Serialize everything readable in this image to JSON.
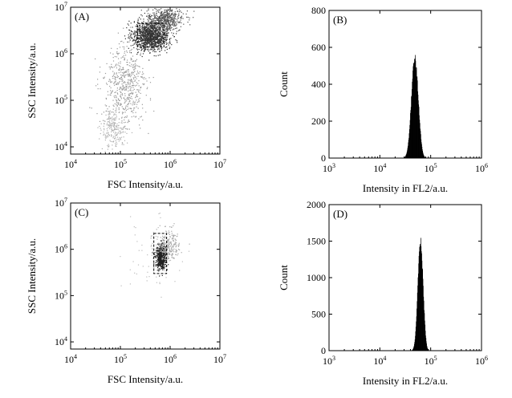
{
  "chart_data": [
    {
      "type": "scatter",
      "panel_label": "(A)",
      "xlabel": "FSC Intensity/a.u.",
      "ylabel": "SSC Intensity/a.u.",
      "x_scale": "log",
      "y_scale": "log",
      "xlim": [
        10000,
        10000000
      ],
      "ylim": [
        7000,
        10000000
      ],
      "x_ticks": [
        {
          "label_base": "10",
          "label_exp": "4",
          "value": 10000
        },
        {
          "label_base": "10",
          "label_exp": "5",
          "value": 100000
        },
        {
          "label_base": "10",
          "label_exp": "6",
          "value": 1000000
        },
        {
          "label_base": "10",
          "label_exp": "7",
          "value": 10000000
        }
      ],
      "y_ticks": [
        {
          "label_base": "10",
          "label_exp": "4",
          "value": 10000
        },
        {
          "label_base": "10",
          "label_exp": "5",
          "value": 100000
        },
        {
          "label_base": "10",
          "label_exp": "6",
          "value": 1000000
        },
        {
          "label_base": "10",
          "label_exp": "7",
          "value": 10000000
        }
      ],
      "gate": {
        "x": [
          220000,
          750000
        ],
        "y": [
          1400000,
          4500000
        ]
      },
      "clusters": [
        {
          "name": "main",
          "center": [
            400000,
            2500000
          ],
          "spread": [
            0.18,
            0.16
          ],
          "count": 1200,
          "color": "#333333"
        },
        {
          "name": "upper",
          "center": [
            800000,
            5500000
          ],
          "spread": [
            0.18,
            0.13
          ],
          "count": 500,
          "color": "#555555"
        },
        {
          "name": "tail",
          "center": [
            120000,
            200000
          ],
          "spread": [
            0.22,
            0.45
          ],
          "count": 550,
          "color": "#9a9a9a"
        },
        {
          "name": "low",
          "center": [
            70000,
            25000
          ],
          "spread": [
            0.12,
            0.2
          ],
          "count": 220,
          "color": "#b0b0b0"
        }
      ]
    },
    {
      "type": "bar",
      "panel_label": "(B)",
      "xlabel": "Intensity in FL2/a.u.",
      "ylabel": "Count",
      "x_scale": "log",
      "xlim": [
        1000,
        1000000
      ],
      "ylim": [
        0,
        800
      ],
      "x_ticks": [
        {
          "label_base": "10",
          "label_exp": "3",
          "value": 1000
        },
        {
          "label_base": "10",
          "label_exp": "4",
          "value": 10000
        },
        {
          "label_base": "10",
          "label_exp": "5",
          "value": 100000
        },
        {
          "label_base": "10",
          "label_exp": "6",
          "value": 1000000
        }
      ],
      "y_ticks": [
        "0",
        "200",
        "400",
        "600",
        "800"
      ],
      "peak_x": 48000,
      "peak_count": 575,
      "histogram_width_log": 0.065
    },
    {
      "type": "scatter",
      "panel_label": "(C)",
      "xlabel": "FSC Intensity/a.u.",
      "ylabel": "SSC Intensity/a.u.",
      "x_scale": "log",
      "y_scale": "log",
      "xlim": [
        10000,
        10000000
      ],
      "ylim": [
        7000,
        10000000
      ],
      "x_ticks": [
        {
          "label_base": "10",
          "label_exp": "4",
          "value": 10000
        },
        {
          "label_base": "10",
          "label_exp": "5",
          "value": 100000
        },
        {
          "label_base": "10",
          "label_exp": "6",
          "value": 1000000
        },
        {
          "label_base": "10",
          "label_exp": "7",
          "value": 10000000
        }
      ],
      "y_ticks": [
        {
          "label_base": "10",
          "label_exp": "4",
          "value": 10000
        },
        {
          "label_base": "10",
          "label_exp": "5",
          "value": 100000
        },
        {
          "label_base": "10",
          "label_exp": "6",
          "value": 1000000
        },
        {
          "label_base": "10",
          "label_exp": "7",
          "value": 10000000
        }
      ],
      "gate": {
        "x": [
          470000,
          850000
        ],
        "y": [
          300000,
          2200000
        ]
      },
      "clusters": [
        {
          "name": "main",
          "center": [
            650000,
            700000
          ],
          "spread": [
            0.05,
            0.12
          ],
          "count": 700,
          "color": "#222222"
        },
        {
          "name": "halo",
          "center": [
            900000,
            1200000
          ],
          "spread": [
            0.12,
            0.18
          ],
          "count": 260,
          "color": "#a8a8a8"
        },
        {
          "name": "sparse",
          "center": [
            400000,
            600000
          ],
          "spread": [
            0.3,
            0.4
          ],
          "count": 60,
          "color": "#bdbdbd"
        }
      ]
    },
    {
      "type": "bar",
      "panel_label": "(D)",
      "xlabel": "Intensity in FL2/a.u.",
      "ylabel": "Count",
      "x_scale": "log",
      "xlim": [
        1000,
        1000000
      ],
      "ylim": [
        0,
        2000
      ],
      "x_ticks": [
        {
          "label_base": "10",
          "label_exp": "3",
          "value": 1000
        },
        {
          "label_base": "10",
          "label_exp": "4",
          "value": 10000
        },
        {
          "label_base": "10",
          "label_exp": "5",
          "value": 100000
        },
        {
          "label_base": "10",
          "label_exp": "6",
          "value": 1000000
        }
      ],
      "y_ticks": [
        "0",
        "500",
        "1000",
        "1500",
        "2000"
      ],
      "peak_x": 62000,
      "peak_count": 1590,
      "histogram_width_log": 0.05
    }
  ]
}
